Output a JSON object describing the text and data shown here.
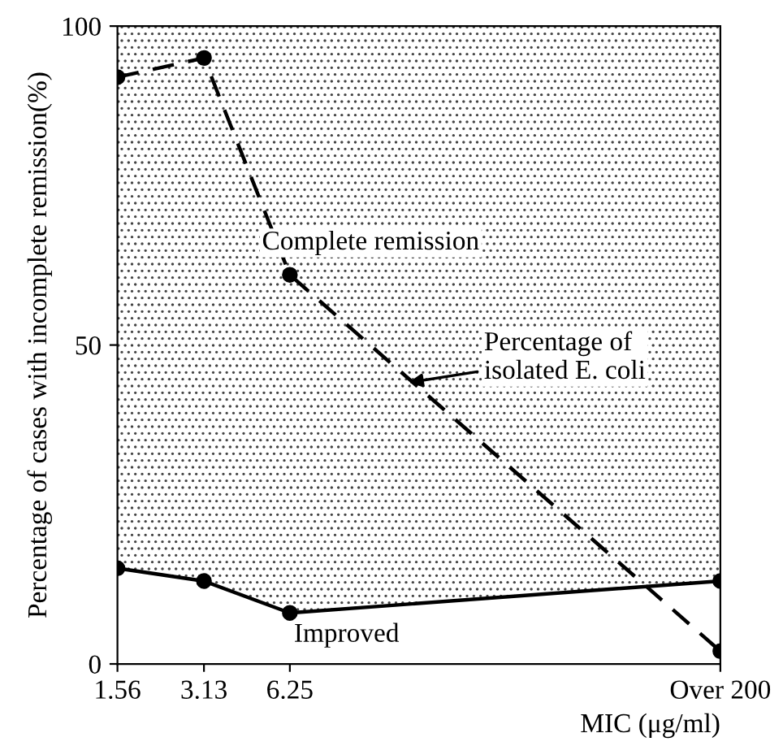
{
  "chart_data": {
    "type": "line",
    "xlabel": "MIC (μg/ml)",
    "ylabel": "Percentage of cases with incomplete remission(%)",
    "x": [
      1.56,
      3.13,
      6.25,
      200
    ],
    "series": [
      {
        "type": "area",
        "color": "#000000",
        "line_style": "solid",
        "values": [
          15,
          13,
          8,
          13
        ]
      },
      {
        "color": "#000000",
        "line_style": "dashed",
        "values": [
          92,
          95,
          61,
          2
        ]
      }
    ],
    "marker": "circle",
    "log": "x",
    "xlim": [
      1.56,
      200
    ],
    "xticks": [
      1.56,
      3.13,
      6.25,
      {
        "value": 200,
        "label": "Over 200"
      }
    ],
    "ylim": [
      0,
      100
    ],
    "yticks": [
      0,
      50,
      100
    ],
    "grid": false,
    "annotations": [
      "Complete remission",
      "Improved",
      {
        "text": "Percentage of\nisolated E. coli",
        "x": 15.7,
        "y": 44
      }
    ]
  }
}
